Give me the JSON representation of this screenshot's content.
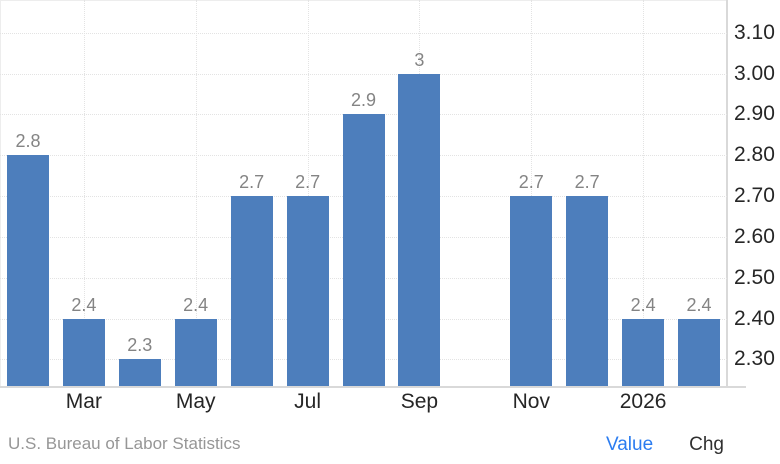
{
  "chart_data": {
    "type": "bar",
    "title": "",
    "grid": "dotted",
    "bar_color": "#4d7ebc",
    "value_label_color": "#848484",
    "points": [
      {
        "value": 2.8,
        "label": "2.8",
        "tick": ""
      },
      {
        "value": 2.4,
        "label": "2.4",
        "tick": "Mar"
      },
      {
        "value": 2.3,
        "label": "2.3",
        "tick": ""
      },
      {
        "value": 2.4,
        "label": "2.4",
        "tick": "May"
      },
      {
        "value": 2.7,
        "label": "2.7",
        "tick": ""
      },
      {
        "value": 2.7,
        "label": "2.7",
        "tick": "Jul"
      },
      {
        "value": 2.9,
        "label": "2.9",
        "tick": ""
      },
      {
        "value": 3.0,
        "label": "3",
        "tick": "Sep"
      },
      {
        "value": null,
        "label": "",
        "tick": ""
      },
      {
        "value": 2.7,
        "label": "2.7",
        "tick": "Nov"
      },
      {
        "value": 2.7,
        "label": "2.7",
        "tick": ""
      },
      {
        "value": 2.4,
        "label": "2.4",
        "tick": "2026"
      },
      {
        "value": 2.4,
        "label": "2.4",
        "tick": ""
      }
    ],
    "x_tick_labels": [
      "Mar",
      "May",
      "Jul",
      "Sep",
      "Nov",
      "2026"
    ],
    "y_axis": {
      "side": "right",
      "ticks": [
        "3.10",
        "3.00",
        "2.90",
        "2.80",
        "2.70",
        "2.60",
        "2.50",
        "2.40",
        "2.30"
      ],
      "tick_values": [
        3.1,
        3.0,
        2.9,
        2.8,
        2.7,
        2.6,
        2.5,
        2.4,
        2.3
      ],
      "ylim": [
        2.23,
        3.18
      ]
    }
  },
  "footer": {
    "source": "U.S. Bureau of Labor Statistics",
    "value_label": "Value",
    "chg_label": "Chg",
    "value_color": "#2b7cf0",
    "chg_color": "#303030",
    "source_color": "#969696"
  }
}
